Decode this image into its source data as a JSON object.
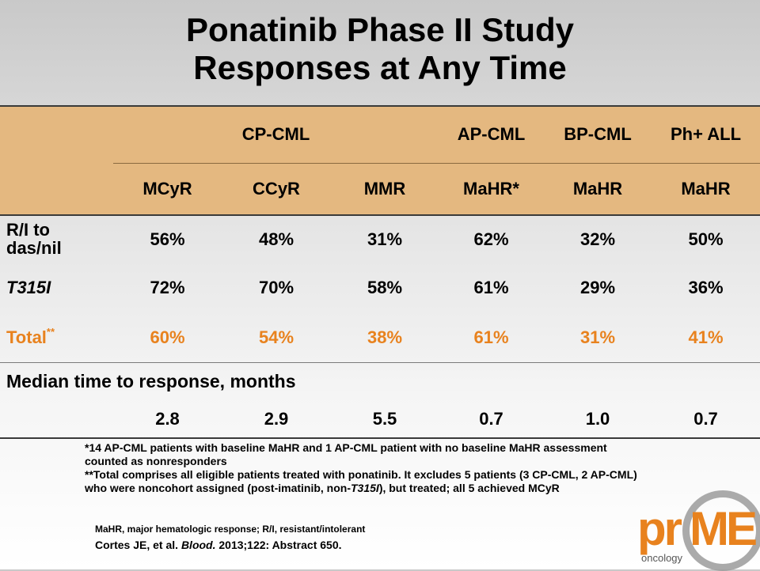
{
  "title": {
    "line1": "Ponatinib Phase II Study",
    "line2": "Responses at Any Time"
  },
  "table": {
    "groups": [
      "CP-CML",
      "AP-CML",
      "BP-CML",
      "Ph+ ALL"
    ],
    "subheaders": [
      "MCyR",
      "CCyR",
      "MMR",
      "MaHR*",
      "MaHR",
      "MaHR"
    ],
    "rows": [
      {
        "label_line1": "R/I to",
        "label_line2": "das/nil",
        "values": [
          "56%",
          "48%",
          "31%",
          "62%",
          "32%",
          "50%"
        ]
      },
      {
        "label": "T315I",
        "values": [
          "72%",
          "70%",
          "58%",
          "61%",
          "29%",
          "36%"
        ]
      },
      {
        "label": "Total",
        "label_sup": "**",
        "values": [
          "60%",
          "54%",
          "38%",
          "61%",
          "31%",
          "41%"
        ]
      }
    ],
    "median_label": "Median time to response, months",
    "median_values": [
      "2.8",
      "2.9",
      "5.5",
      "0.7",
      "1.0",
      "0.7"
    ]
  },
  "footnotes": {
    "fn1_line1": "*14 AP-CML patients with baseline MaHR and 1 AP-CML patient with no baseline MaHR assessment",
    "fn1_line2": "counted as nonresponders",
    "fn2_line1": "**Total comprises all eligible patients treated with ponatinib. It excludes 5 patients (3 CP-CML, 2 AP-CML)",
    "fn2_line2_pre": "who were noncohort assigned (post-imatinib, non-",
    "fn2_line2_italic": "T315I",
    "fn2_line2_post": "), but treated; all 5 achieved MCyR"
  },
  "abbreviations": "MaHR, major hematologic response;  R/I, resistant/intolerant",
  "citation": {
    "authors": "Cortes JE, et al. ",
    "journal": "Blood.",
    "rest": " 2013;122: Abstract 650."
  },
  "logo": {
    "text_pr": "pr",
    "text_me": "ME",
    "text_sub": "oncology"
  },
  "colors": {
    "header_fill": "#e4b880",
    "total_row": "#e8821e",
    "logo_orange": "#e8821e"
  }
}
